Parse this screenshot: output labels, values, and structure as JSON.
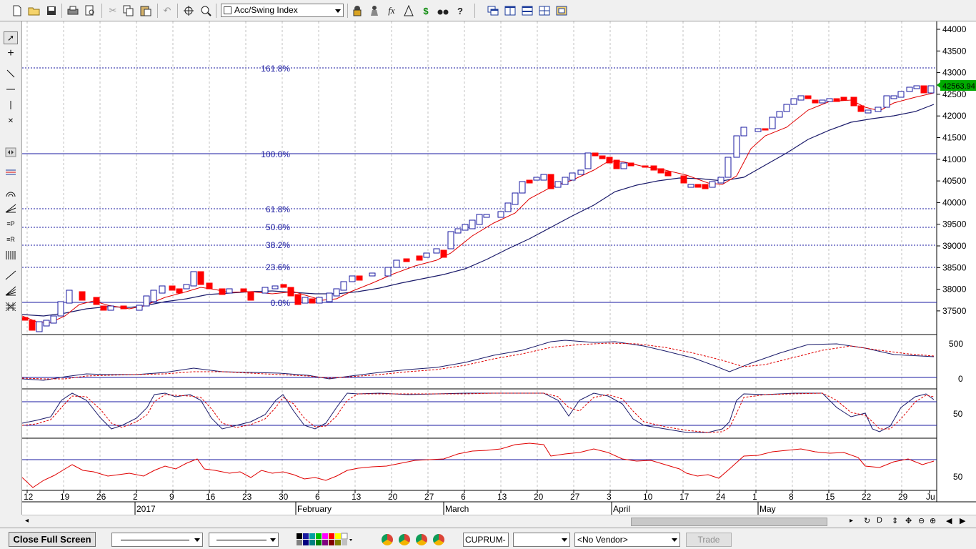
{
  "toolbar": {
    "indicator_select": "Acc/Swing Index",
    "icons": [
      "new-file-icon",
      "open-folder-icon",
      "save-icon",
      "print-icon",
      "print-preview-icon",
      "cut-icon",
      "copy-icon",
      "paste-icon",
      "undo-icon",
      "crosshair-icon",
      "zoom-icon",
      "link-icon",
      "formula-icon",
      "alert-icon",
      "dollar-icon",
      "binoculars-help-icon",
      "windows-icon",
      "tile-vertical-icon",
      "tile-horizontal-icon",
      "tile-grid-icon",
      "layout-icon"
    ],
    "function_label": "fx",
    "dollar_label": "$"
  },
  "chart": {
    "price_axis_labels": [
      "44000",
      "43500",
      "43000",
      "42500",
      "42000",
      "41500",
      "41000",
      "40500",
      "40000",
      "39500",
      "39000",
      "38500",
      "38000",
      "37500"
    ],
    "last_price": "42563.94",
    "fib_labels": [
      "161.8%",
      "100.0%",
      "61.8%",
      "50.0%",
      "38.2%",
      "23.6%",
      "0.0%"
    ],
    "pane2_labels": [
      "500",
      "0"
    ],
    "pane3_labels": [
      "50"
    ],
    "pane4_labels": [
      "50"
    ],
    "date_ticks": [
      "12",
      "19",
      "26",
      "2",
      "9",
      "16",
      "23",
      "30",
      "6",
      "13",
      "20",
      "27",
      "6",
      "13",
      "20",
      "27",
      "3",
      "10",
      "17",
      "24",
      "1",
      "8",
      "15",
      "22",
      "29",
      "Ju"
    ],
    "month_labels": [
      "2017",
      "February",
      "March",
      "April",
      "May"
    ],
    "colors": {
      "up": "#1a1aa0",
      "down": "#ff0000",
      "grid": "#c0c0c0",
      "axis_bg": "#ffffff"
    }
  },
  "statusbar": {
    "close_button": "Close Full Screen",
    "symbol": "CUPRUM-A",
    "vendor": "<No Vendor>",
    "trade_button": "Trade"
  }
}
